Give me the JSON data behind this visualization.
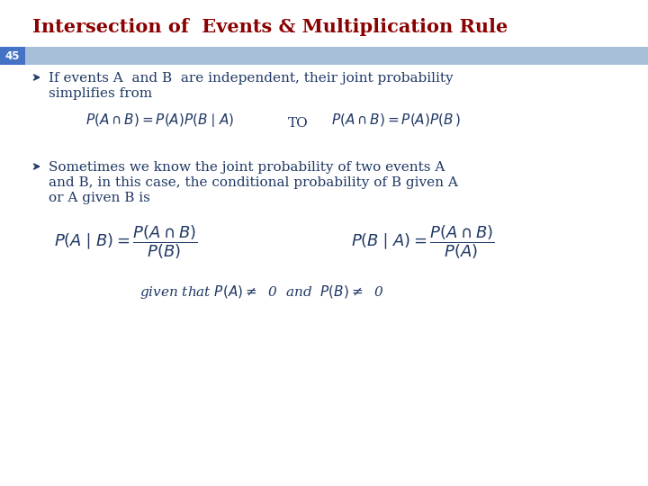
{
  "title": "Intersection of  Events & Multiplication Rule",
  "title_color": "#8B0000",
  "title_fontsize": 15,
  "slide_number": "45",
  "slide_number_bg": "#4472C4",
  "header_bar_color": "#A8BFDA",
  "background_color": "#FFFFFF",
  "text_color": "#1F3864",
  "bullet1_text1": "If events A  and B  are independent, their joint probability",
  "bullet1_text2": "simplifies from",
  "formula1_left": "$P(A \\cap B) = P(A)P(B \\mid A)$",
  "formula1_mid": "TO",
  "formula1_right": "$P(A \\cap B) = P(A)P(B\\,)$",
  "bullet2_text1": "Sometimes we know the joint probability of two events A",
  "bullet2_text2": "and B, in this case, the conditional probability of B given A",
  "bullet2_text3": "or A given B is",
  "formula2_left": "$P(A \\mid B) = \\dfrac{P(A \\cap B)}{P(B)}$",
  "formula2_right": "$P(B \\mid A) = \\dfrac{P(A \\cap B)}{P(A)}$",
  "formula3": "given that $P(A) \\neq$  0  and  $P(B) \\neq$  0",
  "text_fontsize": 11,
  "formula_fontsize": 11,
  "formula2_fontsize": 13
}
